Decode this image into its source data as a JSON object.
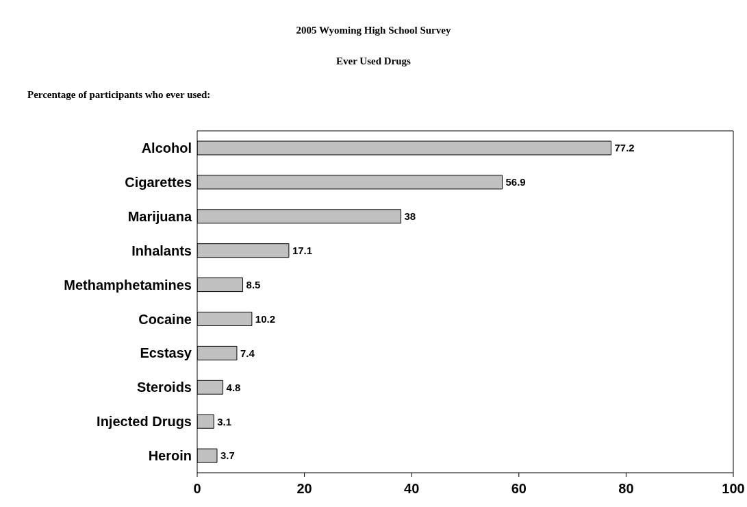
{
  "chart_data": {
    "type": "bar",
    "orientation": "horizontal",
    "title": "2005 Wyoming High School Survey",
    "subtitle": "Ever Used Drugs",
    "annotations": [
      "Percentage of participants who ever used:"
    ],
    "categories": [
      "Alcohol",
      "Cigarettes",
      "Marijuana",
      "Inhalants",
      "Methamphetamines",
      "Cocaine",
      "Ecstasy",
      "Steroids",
      "Injected Drugs",
      "Heroin"
    ],
    "values": [
      77.2,
      56.9,
      38,
      17.1,
      8.5,
      10.2,
      7.4,
      4.8,
      3.1,
      3.7
    ],
    "color": "#c0c0c0",
    "xlim": [
      0,
      100
    ],
    "xticks": [
      0,
      20,
      40,
      60,
      80,
      100
    ],
    "grid": false,
    "data_labels": true
  }
}
